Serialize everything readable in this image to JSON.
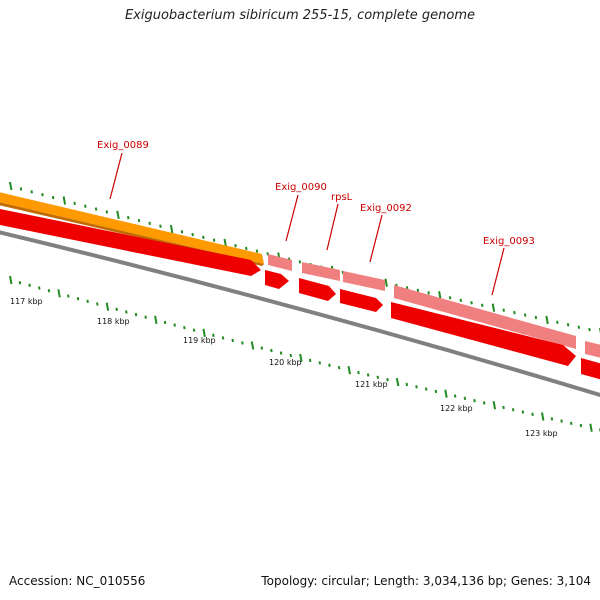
{
  "title": "Exiguobacterium sibiricum 255-15, complete genome",
  "accession": "Accession: NC_010556",
  "summary": "Topology: circular; Length: 3,034,136 bp; Genes: 3,104",
  "colors": {
    "backbone": "#808080",
    "cds_forward": "#f08080",
    "cds_reverse": "#ee0000",
    "gene_orange": "#ff9900",
    "label": "#cc0000",
    "tick": "#228b22"
  },
  "genes": [
    {
      "name": "Exig_0089",
      "label": "Exig_0089"
    },
    {
      "name": "Exig_0090",
      "label": "Exig_0090"
    },
    {
      "name": "rpsL",
      "label": "rpsL"
    },
    {
      "name": "Exig_0092",
      "label": "Exig_0092"
    },
    {
      "name": "Exig_0093",
      "label": "Exig_0093"
    }
  ],
  "kbp_labels": [
    "117 kbp",
    "118 kbp",
    "119 kbp",
    "120 kbp",
    "121 kbp",
    "122 kbp",
    "123 kbp"
  ]
}
